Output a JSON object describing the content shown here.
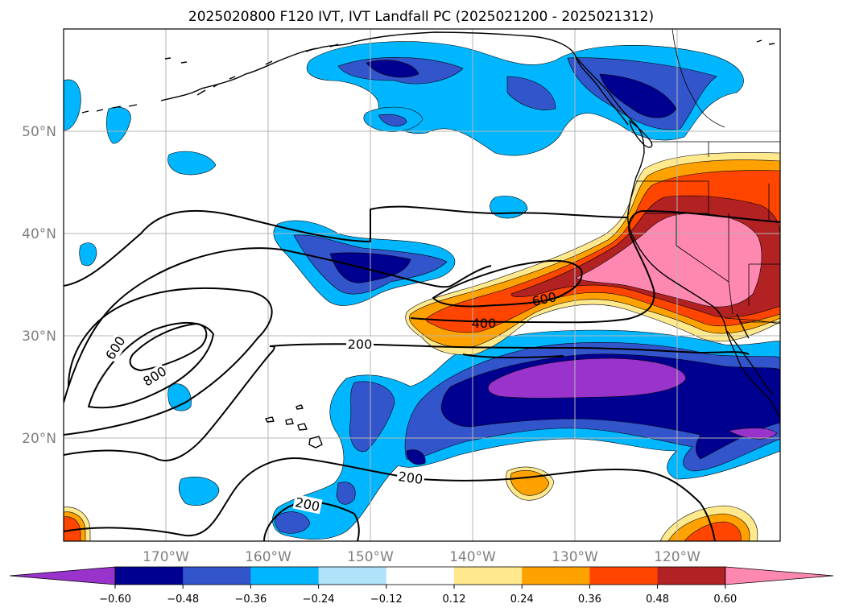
{
  "title": "2025020800 F120 IVT, IVT Landfall PC (2025021200 - 2025021312)",
  "map": {
    "lon_range": [
      180,
      110
    ],
    "lat_range": [
      10,
      60
    ],
    "lon_ticks": [
      "170°W",
      "160°W",
      "150°W",
      "140°W",
      "130°W",
      "120°W"
    ],
    "lat_ticks": [
      "50°N",
      "40°N",
      "30°N",
      "20°N"
    ],
    "gridlines": true
  },
  "contour_labels": [
    "600",
    "800",
    "200",
    "400",
    "600",
    "200",
    "200"
  ],
  "colorbar": {
    "orientation": "horizontal",
    "extend": "both",
    "tick_labels": [
      "−0.60",
      "−0.48",
      "−0.36",
      "−0.24",
      "−0.12",
      "0.12",
      "0.24",
      "0.36",
      "0.48",
      "0.60"
    ],
    "colors": [
      "#9933cc",
      "#000090",
      "#3355cc",
      "#00b7ff",
      "#b0e2fa",
      "#ffffff",
      "#ffe98c",
      "#ffa200",
      "#ff4500",
      "#b22222",
      "#ff88b0"
    ]
  }
}
